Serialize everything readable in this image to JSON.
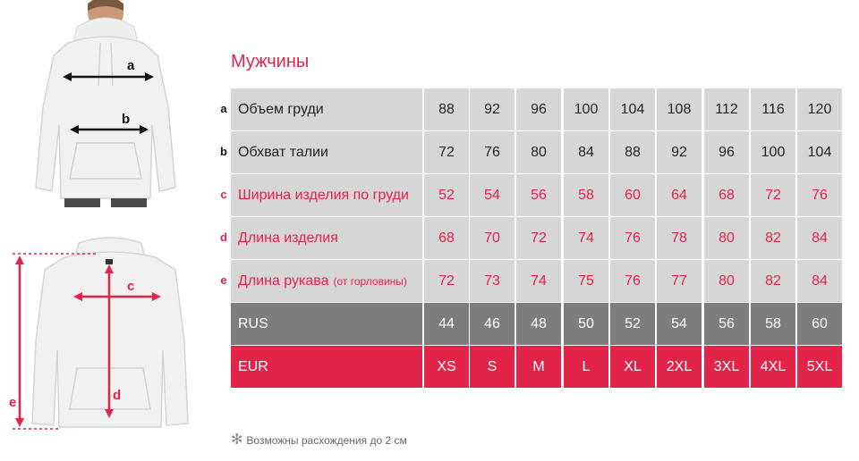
{
  "title": "Мужчины",
  "colors": {
    "accent": "#e2234a",
    "cell_grey": "#d6d6d6",
    "cell_dark": "#7d7d7d"
  },
  "diagram_labels": {
    "a": "a",
    "b": "b",
    "c": "c",
    "d": "d",
    "e": "e"
  },
  "rows": [
    {
      "letter": "a",
      "label": "Объем груди",
      "note": "",
      "style": "grey",
      "text_color": "dark",
      "values": [
        "88",
        "92",
        "96",
        "100",
        "104",
        "108",
        "112",
        "116",
        "120"
      ]
    },
    {
      "letter": "b",
      "label": "Обхват талии",
      "note": "",
      "style": "grey",
      "text_color": "dark",
      "values": [
        "72",
        "76",
        "80",
        "84",
        "88",
        "92",
        "96",
        "100",
        "104"
      ]
    },
    {
      "letter": "c",
      "label": "Ширина изделия по груди",
      "note": "",
      "style": "grey",
      "text_color": "red",
      "values": [
        "52",
        "54",
        "56",
        "58",
        "60",
        "64",
        "68",
        "72",
        "76"
      ]
    },
    {
      "letter": "d",
      "label": "Длина изделия",
      "note": "",
      "style": "grey",
      "text_color": "red",
      "values": [
        "68",
        "70",
        "72",
        "74",
        "76",
        "78",
        "80",
        "82",
        "84"
      ]
    },
    {
      "letter": "e",
      "label": "Длина рукава",
      "note": "(от горловины)",
      "style": "grey",
      "text_color": "red",
      "values": [
        "72",
        "73",
        "74",
        "75",
        "76",
        "77",
        "80",
        "82",
        "84"
      ]
    },
    {
      "letter": "",
      "label": "RUS",
      "note": "",
      "style": "dgrey",
      "text_color": "light",
      "values": [
        "44",
        "46",
        "48",
        "50",
        "52",
        "54",
        "56",
        "58",
        "60"
      ]
    },
    {
      "letter": "",
      "label": "EUR",
      "note": "",
      "style": "redbg",
      "text_color": "light",
      "values": [
        "XS",
        "S",
        "M",
        "L",
        "XL",
        "2XL",
        "3XL",
        "4XL",
        "5XL"
      ]
    }
  ],
  "footnote": "Возможны расхождения до 2 см"
}
